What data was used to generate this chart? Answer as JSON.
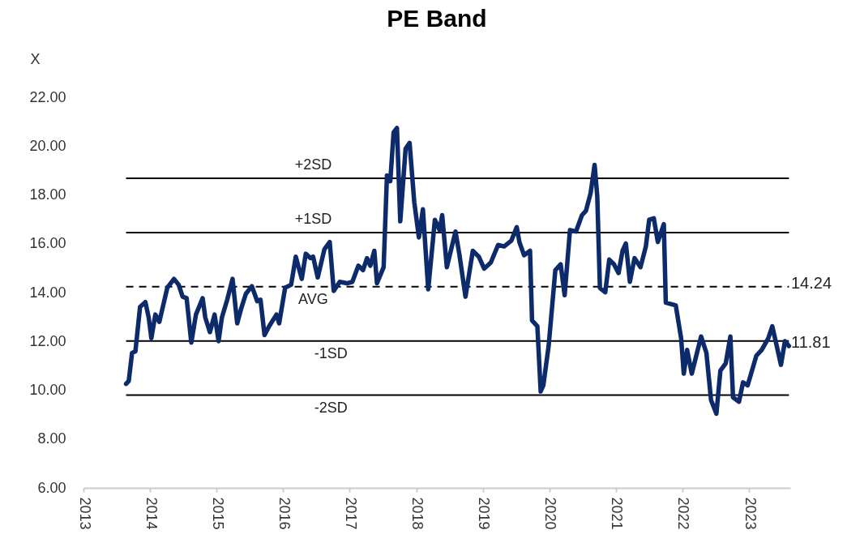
{
  "chart_data": {
    "type": "line",
    "title": "PE Band",
    "ylabel": "X",
    "x": [
      2013.64,
      2013.68,
      2013.73,
      2013.78,
      2013.85,
      2013.93,
      2013.98,
      2014.02,
      2014.08,
      2014.14,
      2014.26,
      2014.36,
      2014.43,
      2014.49,
      2014.55,
      2014.62,
      2014.69,
      2014.79,
      2014.83,
      2014.9,
      2014.97,
      2015.03,
      2015.08,
      2015.16,
      2015.24,
      2015.31,
      2015.37,
      2015.44,
      2015.53,
      2015.61,
      2015.66,
      2015.72,
      2015.79,
      2015.9,
      2015.94,
      2016.03,
      2016.12,
      2016.19,
      2016.28,
      2016.34,
      2016.41,
      2016.45,
      2016.52,
      2016.62,
      2016.7,
      2016.76,
      2016.85,
      2016.96,
      2017.04,
      2017.13,
      2017.2,
      2017.26,
      2017.31,
      2017.37,
      2017.41,
      2017.51,
      2017.56,
      2017.61,
      2017.66,
      2017.71,
      2017.76,
      2017.84,
      2017.9,
      2017.97,
      2018.04,
      2018.1,
      2018.18,
      2018.28,
      2018.35,
      2018.39,
      2018.46,
      2018.59,
      2018.65,
      2018.74,
      2018.85,
      2018.94,
      2019.02,
      2019.12,
      2019.23,
      2019.32,
      2019.43,
      2019.51,
      2019.55,
      2019.62,
      2019.71,
      2019.74,
      2019.82,
      2019.87,
      2019.91,
      2019.99,
      2020.09,
      2020.17,
      2020.23,
      2020.31,
      2020.4,
      2020.49,
      2020.55,
      2020.62,
      2020.68,
      2020.72,
      2020.76,
      2020.84,
      2020.9,
      2020.97,
      2021.04,
      2021.1,
      2021.15,
      2021.21,
      2021.28,
      2021.37,
      2021.45,
      2021.5,
      2021.57,
      2021.63,
      2021.72,
      2021.75,
      2021.9,
      2021.98,
      2022.02,
      2022.07,
      2022.14,
      2022.28,
      2022.36,
      2022.43,
      2022.51,
      2022.57,
      2022.65,
      2022.72,
      2022.76,
      2022.85,
      2022.91,
      2022.98,
      2023.11,
      2023.19,
      2023.29,
      2023.35,
      2023.42,
      2023.48,
      2023.54,
      2023.6
    ],
    "series": [
      {
        "color": "#0d2a6b",
        "values": [
          10.26,
          10.38,
          11.53,
          11.59,
          13.41,
          13.61,
          12.98,
          12.13,
          13.1,
          12.8,
          14.2,
          14.56,
          14.32,
          13.83,
          13.77,
          11.95,
          13.1,
          13.77,
          12.98,
          12.38,
          13.1,
          12.01,
          12.98,
          13.71,
          14.56,
          12.74,
          13.35,
          13.95,
          14.26,
          13.65,
          13.71,
          12.26,
          12.62,
          13.1,
          12.74,
          14.2,
          14.32,
          15.47,
          14.56,
          15.59,
          15.41,
          15.47,
          14.62,
          15.77,
          16.07,
          14.07,
          14.44,
          14.38,
          14.44,
          15.1,
          14.92,
          15.41,
          15.1,
          15.71,
          14.38,
          15.04,
          18.8,
          18.56,
          20.56,
          20.74,
          16.92,
          19.89,
          20.13,
          17.71,
          16.26,
          17.41,
          14.13,
          16.98,
          16.56,
          17.17,
          15.04,
          16.5,
          15.53,
          13.83,
          15.71,
          15.47,
          14.98,
          15.23,
          15.95,
          15.89,
          16.13,
          16.68,
          16.07,
          15.53,
          15.71,
          12.86,
          12.62,
          9.95,
          10.2,
          11.83,
          14.92,
          15.16,
          13.89,
          16.56,
          16.5,
          17.17,
          17.35,
          18.07,
          19.23,
          17.95,
          14.19,
          14.01,
          15.35,
          15.16,
          14.8,
          15.71,
          16.01,
          14.44,
          15.41,
          15.04,
          15.89,
          16.98,
          17.04,
          16.07,
          16.8,
          13.59,
          13.47,
          12.13,
          10.68,
          11.65,
          10.68,
          12.2,
          11.53,
          9.59,
          9.04,
          10.8,
          11.1,
          12.2,
          9.71,
          9.53,
          10.32,
          10.2,
          11.41,
          11.65,
          12.13,
          12.62,
          11.77,
          11.04,
          12.01,
          11.81
        ]
      }
    ],
    "xlim": [
      2013,
      2023.62
    ],
    "xticks": [
      2013,
      2014,
      2015,
      2016,
      2017,
      2018,
      2019,
      2020,
      2021,
      2022,
      2023
    ],
    "ylim": [
      6,
      22
    ],
    "yticks": [
      {
        "value": 6,
        "label": "6.00"
      },
      {
        "value": 8,
        "label": "8.00"
      },
      {
        "value": 10,
        "label": "10.00"
      },
      {
        "value": 12,
        "label": "12.00"
      },
      {
        "value": 14,
        "label": "14.00"
      },
      {
        "value": 16,
        "label": "16.00"
      },
      {
        "value": 18,
        "label": "18.00"
      },
      {
        "value": 20,
        "label": "20.00"
      },
      {
        "value": 22,
        "label": "22.00"
      }
    ],
    "ref_lines": [
      {
        "axis": "y",
        "value": 18.68,
        "label": "+2SD",
        "line_style": "solid",
        "color": "#000000"
      },
      {
        "axis": "y",
        "value": 16.46,
        "label": "+1SD",
        "line_style": "solid",
        "color": "#000000"
      },
      {
        "axis": "y",
        "value": 14.24,
        "label": "AVG",
        "line_style": "dashed",
        "color": "#000000"
      },
      {
        "axis": "y",
        "value": 12.02,
        "label": "-1SD",
        "line_style": "solid",
        "color": "#000000"
      },
      {
        "axis": "y",
        "value": 9.8,
        "label": "-2SD",
        "line_style": "solid",
        "color": "#000000"
      }
    ],
    "annotations": [
      {
        "text": "14.24",
        "x": 2023.62,
        "y": 14.24
      },
      {
        "text": "11.81",
        "x": 2023.62,
        "y": 11.81
      }
    ],
    "grid": false,
    "marker": "none",
    "line_style": "solid"
  }
}
